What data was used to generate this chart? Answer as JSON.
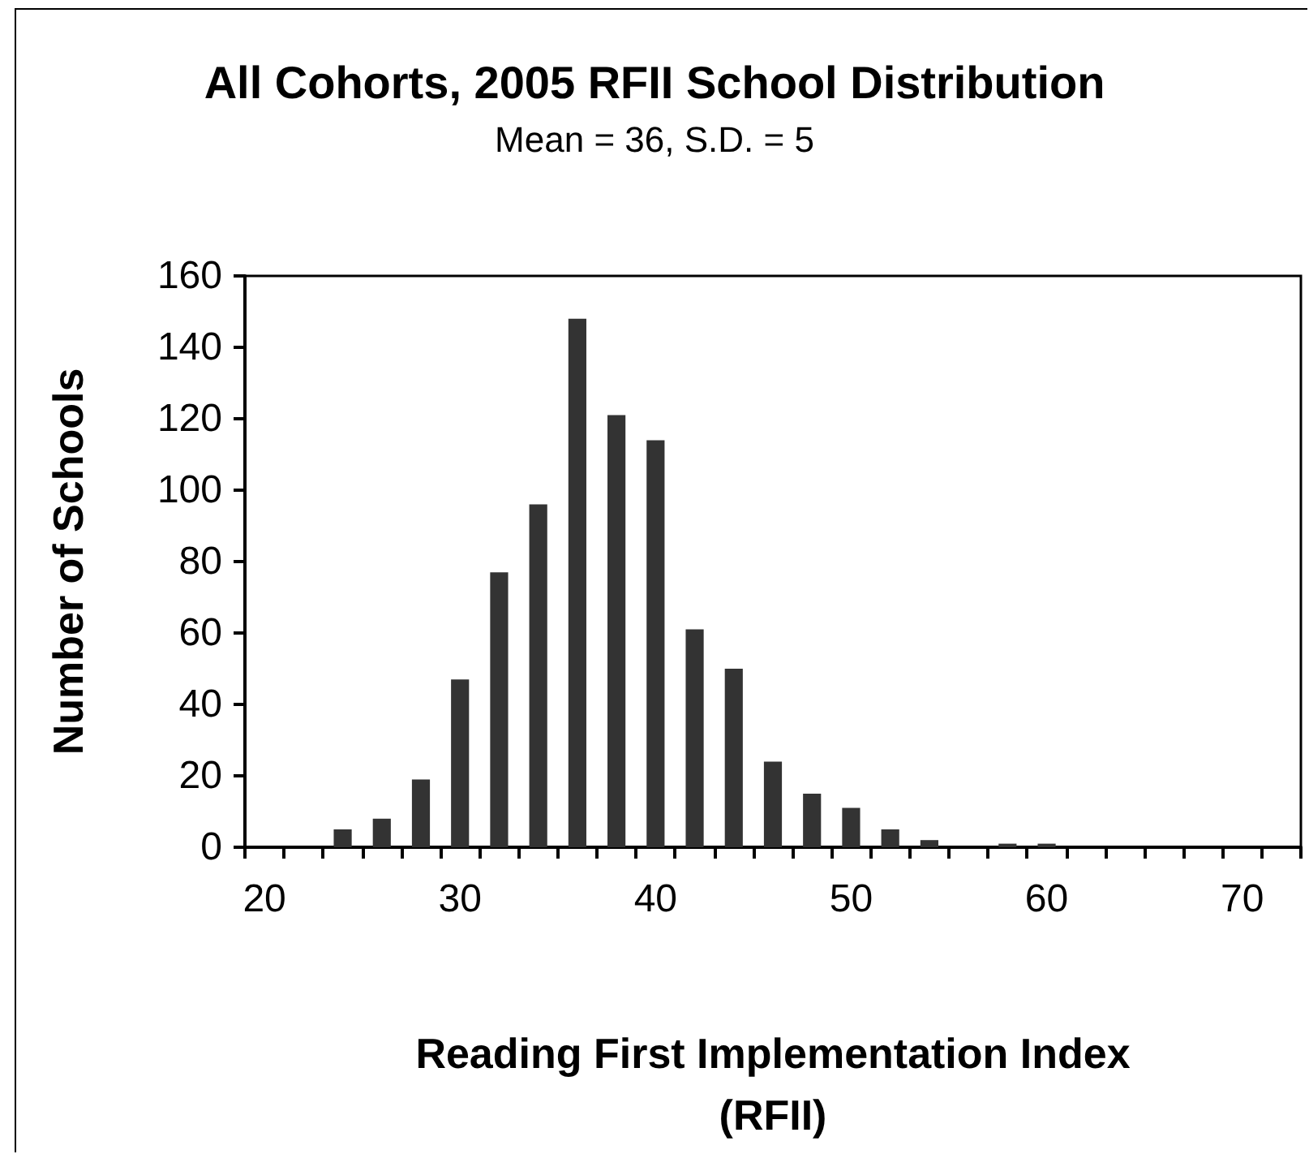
{
  "chart_data": {
    "type": "bar",
    "title": "All Cohorts, 2005 RFII School Distribution",
    "subtitle": "Mean = 36, S.D. = 5",
    "xlabel": "Reading First Implementation Index\n(RFII)",
    "ylabel": "Number of Schools",
    "categories": [
      "20",
      null,
      null,
      null,
      null,
      "30",
      null,
      null,
      null,
      null,
      "40",
      null,
      null,
      null,
      null,
      "50",
      null,
      null,
      null,
      null,
      "60",
      null,
      null,
      null,
      null,
      "70",
      null
    ],
    "values": [
      null,
      null,
      5,
      8,
      19,
      47,
      77,
      96,
      148,
      121,
      114,
      61,
      50,
      24,
      15,
      11,
      5,
      2,
      0,
      1,
      1,
      null,
      null,
      null,
      null,
      null,
      null
    ],
    "color": "#333333",
    "ylim": [
      0,
      160
    ],
    "yticks": [
      0,
      20,
      40,
      60,
      80,
      100,
      120,
      140,
      160
    ],
    "grid": false
  }
}
